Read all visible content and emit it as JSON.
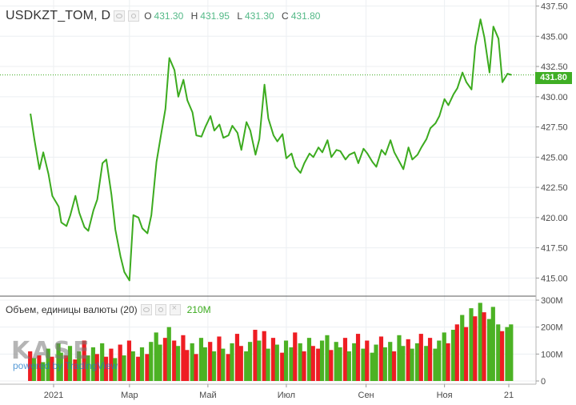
{
  "header": {
    "symbol": "USDKZT_TOM, D",
    "ohlc": [
      {
        "key": "O",
        "value": "431.30"
      },
      {
        "key": "H",
        "value": "431.95"
      },
      {
        "key": "L",
        "value": "431.30"
      },
      {
        "key": "C",
        "value": "431.80"
      }
    ]
  },
  "volume_legend": {
    "title": "Объем, единицы валюты (20)",
    "value": "210M"
  },
  "last_price_label": "431.80",
  "watermark": {
    "logo_text": "KASE",
    "powered_text": "powered by TradingView"
  },
  "colors": {
    "price_line": "#3cab1f",
    "volume_up": "#4cb224",
    "volume_down": "#ee1d23",
    "last_tag_bg": "#3fae24",
    "grid": "#eceff2"
  },
  "chart_data": {
    "type": "line",
    "price_axis": {
      "ylim": [
        413.5,
        438
      ],
      "ticks": [
        415.0,
        417.5,
        420.0,
        422.5,
        425.0,
        427.5,
        430.0,
        432.5,
        435.0,
        437.5
      ],
      "tick_labels": [
        "415.00",
        "417.50",
        "420.00",
        "422.50",
        "425.00",
        "427.50",
        "430.00",
        "432.50",
        "435.00",
        "437.50"
      ]
    },
    "volume_axis": {
      "ylim": [
        0,
        300
      ],
      "ticks": [
        0,
        100,
        200,
        300
      ],
      "tick_labels": [
        "0",
        "100M",
        "200M",
        "300M"
      ]
    },
    "x_axis": {
      "labels": [
        "2021",
        "Мар",
        "Май",
        "Июл",
        "Сен",
        "Ноя",
        "21"
      ],
      "label_dates": [
        "2021-01-01",
        "2021-03-01",
        "2021-05-01",
        "2021-07-01",
        "2021-09-01",
        "2021-11-01",
        "2021-12-21"
      ]
    },
    "price_series": [
      [
        "2020-12-14",
        428.6
      ],
      [
        "2020-12-17",
        426.5
      ],
      [
        "2020-12-21",
        424.0
      ],
      [
        "2020-12-24",
        425.4
      ],
      [
        "2020-12-28",
        423.6
      ],
      [
        "2020-12-31",
        421.8
      ],
      [
        "2021-01-05",
        420.9
      ],
      [
        "2021-01-07",
        419.6
      ],
      [
        "2021-01-11",
        419.3
      ],
      [
        "2021-01-14",
        420.2
      ],
      [
        "2021-01-18",
        421.8
      ],
      [
        "2021-01-21",
        420.4
      ],
      [
        "2021-01-25",
        419.2
      ],
      [
        "2021-01-28",
        418.9
      ],
      [
        "2021-02-01",
        420.6
      ],
      [
        "2021-02-04",
        421.5
      ],
      [
        "2021-02-08",
        424.5
      ],
      [
        "2021-02-11",
        424.8
      ],
      [
        "2021-02-15",
        421.9
      ],
      [
        "2021-02-18",
        419.0
      ],
      [
        "2021-02-22",
        416.8
      ],
      [
        "2021-02-25",
        415.5
      ],
      [
        "2021-03-01",
        414.8
      ],
      [
        "2021-03-04",
        420.2
      ],
      [
        "2021-03-08",
        420.0
      ],
      [
        "2021-03-11",
        419.1
      ],
      [
        "2021-03-15",
        418.7
      ],
      [
        "2021-03-18",
        420.2
      ],
      [
        "2021-03-22",
        424.6
      ],
      [
        "2021-03-25",
        426.5
      ],
      [
        "2021-03-29",
        429.0
      ],
      [
        "2021-04-01",
        433.2
      ],
      [
        "2021-04-05",
        432.2
      ],
      [
        "2021-04-08",
        430.0
      ],
      [
        "2021-04-12",
        431.4
      ],
      [
        "2021-04-15",
        429.7
      ],
      [
        "2021-04-19",
        428.7
      ],
      [
        "2021-04-22",
        426.8
      ],
      [
        "2021-04-26",
        426.7
      ],
      [
        "2021-04-29",
        427.5
      ],
      [
        "2021-05-03",
        428.4
      ],
      [
        "2021-05-06",
        427.2
      ],
      [
        "2021-05-10",
        427.7
      ],
      [
        "2021-05-13",
        426.6
      ],
      [
        "2021-05-17",
        426.8
      ],
      [
        "2021-05-20",
        427.6
      ],
      [
        "2021-05-24",
        427.0
      ],
      [
        "2021-05-27",
        425.6
      ],
      [
        "2021-05-31",
        427.9
      ],
      [
        "2021-06-03",
        427.2
      ],
      [
        "2021-06-07",
        425.2
      ],
      [
        "2021-06-10",
        426.5
      ],
      [
        "2021-06-14",
        431.0
      ],
      [
        "2021-06-17",
        428.2
      ],
      [
        "2021-06-21",
        426.8
      ],
      [
        "2021-06-24",
        426.3
      ],
      [
        "2021-06-28",
        426.9
      ],
      [
        "2021-07-01",
        424.9
      ],
      [
        "2021-07-05",
        425.3
      ],
      [
        "2021-07-08",
        424.2
      ],
      [
        "2021-07-12",
        423.7
      ],
      [
        "2021-07-15",
        424.5
      ],
      [
        "2021-07-19",
        425.3
      ],
      [
        "2021-07-22",
        425.0
      ],
      [
        "2021-07-26",
        425.8
      ],
      [
        "2021-07-29",
        425.4
      ],
      [
        "2021-08-02",
        426.4
      ],
      [
        "2021-08-05",
        425.0
      ],
      [
        "2021-08-09",
        425.6
      ],
      [
        "2021-08-12",
        425.5
      ],
      [
        "2021-08-16",
        424.8
      ],
      [
        "2021-08-19",
        425.2
      ],
      [
        "2021-08-23",
        425.4
      ],
      [
        "2021-08-26",
        424.5
      ],
      [
        "2021-08-30",
        425.7
      ],
      [
        "2021-09-02",
        425.3
      ],
      [
        "2021-09-06",
        424.6
      ],
      [
        "2021-09-09",
        424.2
      ],
      [
        "2021-09-13",
        425.6
      ],
      [
        "2021-09-16",
        425.2
      ],
      [
        "2021-09-20",
        426.4
      ],
      [
        "2021-09-23",
        425.4
      ],
      [
        "2021-09-27",
        424.6
      ],
      [
        "2021-09-30",
        424.0
      ],
      [
        "2021-10-04",
        425.8
      ],
      [
        "2021-10-07",
        424.8
      ],
      [
        "2021-10-11",
        425.2
      ],
      [
        "2021-10-14",
        425.8
      ],
      [
        "2021-10-18",
        426.5
      ],
      [
        "2021-10-21",
        427.4
      ],
      [
        "2021-10-25",
        427.8
      ],
      [
        "2021-10-28",
        428.4
      ],
      [
        "2021-11-01",
        429.8
      ],
      [
        "2021-11-04",
        429.3
      ],
      [
        "2021-11-08",
        430.2
      ],
      [
        "2021-11-11",
        430.7
      ],
      [
        "2021-11-15",
        432.0
      ],
      [
        "2021-11-18",
        431.2
      ],
      [
        "2021-11-22",
        430.6
      ],
      [
        "2021-11-25",
        434.2
      ],
      [
        "2021-11-29",
        436.4
      ],
      [
        "2021-12-02",
        434.9
      ],
      [
        "2021-12-06",
        432.0
      ],
      [
        "2021-12-09",
        435.8
      ],
      [
        "2021-12-13",
        434.8
      ],
      [
        "2021-12-16",
        431.2
      ],
      [
        "2021-12-20",
        431.9
      ],
      [
        "2021-12-23",
        431.8
      ]
    ],
    "volume_series": [
      [
        "2020-12-14",
        110,
        "down"
      ],
      [
        "2020-12-17",
        85,
        "up"
      ],
      [
        "2020-12-21",
        95,
        "down"
      ],
      [
        "2020-12-24",
        70,
        "up"
      ],
      [
        "2020-12-28",
        120,
        "up"
      ],
      [
        "2020-12-31",
        90,
        "down"
      ],
      [
        "2021-01-05",
        140,
        "up"
      ],
      [
        "2021-01-07",
        105,
        "up"
      ],
      [
        "2021-01-11",
        95,
        "down"
      ],
      [
        "2021-01-14",
        130,
        "up"
      ],
      [
        "2021-01-18",
        80,
        "down"
      ],
      [
        "2021-01-21",
        110,
        "up"
      ],
      [
        "2021-01-25",
        150,
        "down"
      ],
      [
        "2021-01-28",
        95,
        "up"
      ],
      [
        "2021-02-01",
        125,
        "up"
      ],
      [
        "2021-02-04",
        100,
        "down"
      ],
      [
        "2021-02-08",
        140,
        "up"
      ],
      [
        "2021-02-11",
        90,
        "down"
      ],
      [
        "2021-02-15",
        120,
        "down"
      ],
      [
        "2021-02-18",
        85,
        "up"
      ],
      [
        "2021-02-22",
        135,
        "down"
      ],
      [
        "2021-02-25",
        95,
        "up"
      ],
      [
        "2021-03-01",
        150,
        "down"
      ],
      [
        "2021-03-04",
        110,
        "up"
      ],
      [
        "2021-03-08",
        90,
        "down"
      ],
      [
        "2021-03-11",
        125,
        "up"
      ],
      [
        "2021-03-15",
        100,
        "down"
      ],
      [
        "2021-03-18",
        145,
        "up"
      ],
      [
        "2021-03-22",
        180,
        "up"
      ],
      [
        "2021-03-25",
        135,
        "up"
      ],
      [
        "2021-03-29",
        160,
        "down"
      ],
      [
        "2021-04-01",
        200,
        "up"
      ],
      [
        "2021-04-05",
        150,
        "down"
      ],
      [
        "2021-04-08",
        130,
        "up"
      ],
      [
        "2021-04-12",
        170,
        "down"
      ],
      [
        "2021-04-15",
        115,
        "down"
      ],
      [
        "2021-04-19",
        140,
        "up"
      ],
      [
        "2021-04-22",
        100,
        "down"
      ],
      [
        "2021-04-26",
        160,
        "up"
      ],
      [
        "2021-04-29",
        125,
        "up"
      ],
      [
        "2021-05-03",
        145,
        "down"
      ],
      [
        "2021-05-06",
        110,
        "up"
      ],
      [
        "2021-05-10",
        165,
        "down"
      ],
      [
        "2021-05-13",
        120,
        "up"
      ],
      [
        "2021-05-17",
        100,
        "down"
      ],
      [
        "2021-05-20",
        140,
        "up"
      ],
      [
        "2021-05-24",
        175,
        "down"
      ],
      [
        "2021-05-27",
        130,
        "down"
      ],
      [
        "2021-05-31",
        110,
        "up"
      ],
      [
        "2021-06-03",
        145,
        "up"
      ],
      [
        "2021-06-07",
        190,
        "down"
      ],
      [
        "2021-06-10",
        150,
        "up"
      ],
      [
        "2021-06-14",
        185,
        "down"
      ],
      [
        "2021-06-17",
        120,
        "up"
      ],
      [
        "2021-06-21",
        160,
        "down"
      ],
      [
        "2021-06-24",
        135,
        "up"
      ],
      [
        "2021-06-28",
        105,
        "down"
      ],
      [
        "2021-07-01",
        150,
        "up"
      ],
      [
        "2021-07-05",
        125,
        "up"
      ],
      [
        "2021-07-08",
        180,
        "down"
      ],
      [
        "2021-07-12",
        140,
        "up"
      ],
      [
        "2021-07-15",
        110,
        "down"
      ],
      [
        "2021-07-19",
        160,
        "up"
      ],
      [
        "2021-07-22",
        130,
        "down"
      ],
      [
        "2021-07-26",
        120,
        "down"
      ],
      [
        "2021-07-29",
        150,
        "up"
      ],
      [
        "2021-08-02",
        170,
        "up"
      ],
      [
        "2021-08-05",
        115,
        "down"
      ],
      [
        "2021-08-09",
        145,
        "up"
      ],
      [
        "2021-08-12",
        125,
        "up"
      ],
      [
        "2021-08-16",
        160,
        "down"
      ],
      [
        "2021-08-19",
        110,
        "up"
      ],
      [
        "2021-08-23",
        140,
        "up"
      ],
      [
        "2021-08-26",
        175,
        "down"
      ],
      [
        "2021-08-30",
        120,
        "up"
      ],
      [
        "2021-09-02",
        150,
        "down"
      ],
      [
        "2021-09-06",
        105,
        "up"
      ],
      [
        "2021-09-09",
        135,
        "up"
      ],
      [
        "2021-09-13",
        165,
        "down"
      ],
      [
        "2021-09-16",
        125,
        "up"
      ],
      [
        "2021-09-20",
        145,
        "up"
      ],
      [
        "2021-09-23",
        110,
        "down"
      ],
      [
        "2021-09-27",
        170,
        "up"
      ],
      [
        "2021-09-30",
        130,
        "up"
      ],
      [
        "2021-10-04",
        155,
        "down"
      ],
      [
        "2021-10-07",
        120,
        "up"
      ],
      [
        "2021-10-11",
        140,
        "up"
      ],
      [
        "2021-10-14",
        175,
        "down"
      ],
      [
        "2021-10-18",
        130,
        "up"
      ],
      [
        "2021-10-21",
        160,
        "down"
      ],
      [
        "2021-10-25",
        120,
        "up"
      ],
      [
        "2021-10-28",
        150,
        "up"
      ],
      [
        "2021-11-01",
        180,
        "up"
      ],
      [
        "2021-11-04",
        140,
        "down"
      ],
      [
        "2021-11-08",
        190,
        "up"
      ],
      [
        "2021-11-11",
        210,
        "down"
      ],
      [
        "2021-11-15",
        245,
        "up"
      ],
      [
        "2021-11-18",
        200,
        "down"
      ],
      [
        "2021-11-22",
        270,
        "up"
      ],
      [
        "2021-11-25",
        240,
        "down"
      ],
      [
        "2021-11-29",
        290,
        "up"
      ],
      [
        "2021-12-02",
        255,
        "down"
      ],
      [
        "2021-12-06",
        230,
        "up"
      ],
      [
        "2021-12-09",
        275,
        "up"
      ],
      [
        "2021-12-13",
        210,
        "up"
      ],
      [
        "2021-12-16",
        185,
        "down"
      ],
      [
        "2021-12-20",
        200,
        "up"
      ],
      [
        "2021-12-23",
        210,
        "up"
      ]
    ]
  }
}
